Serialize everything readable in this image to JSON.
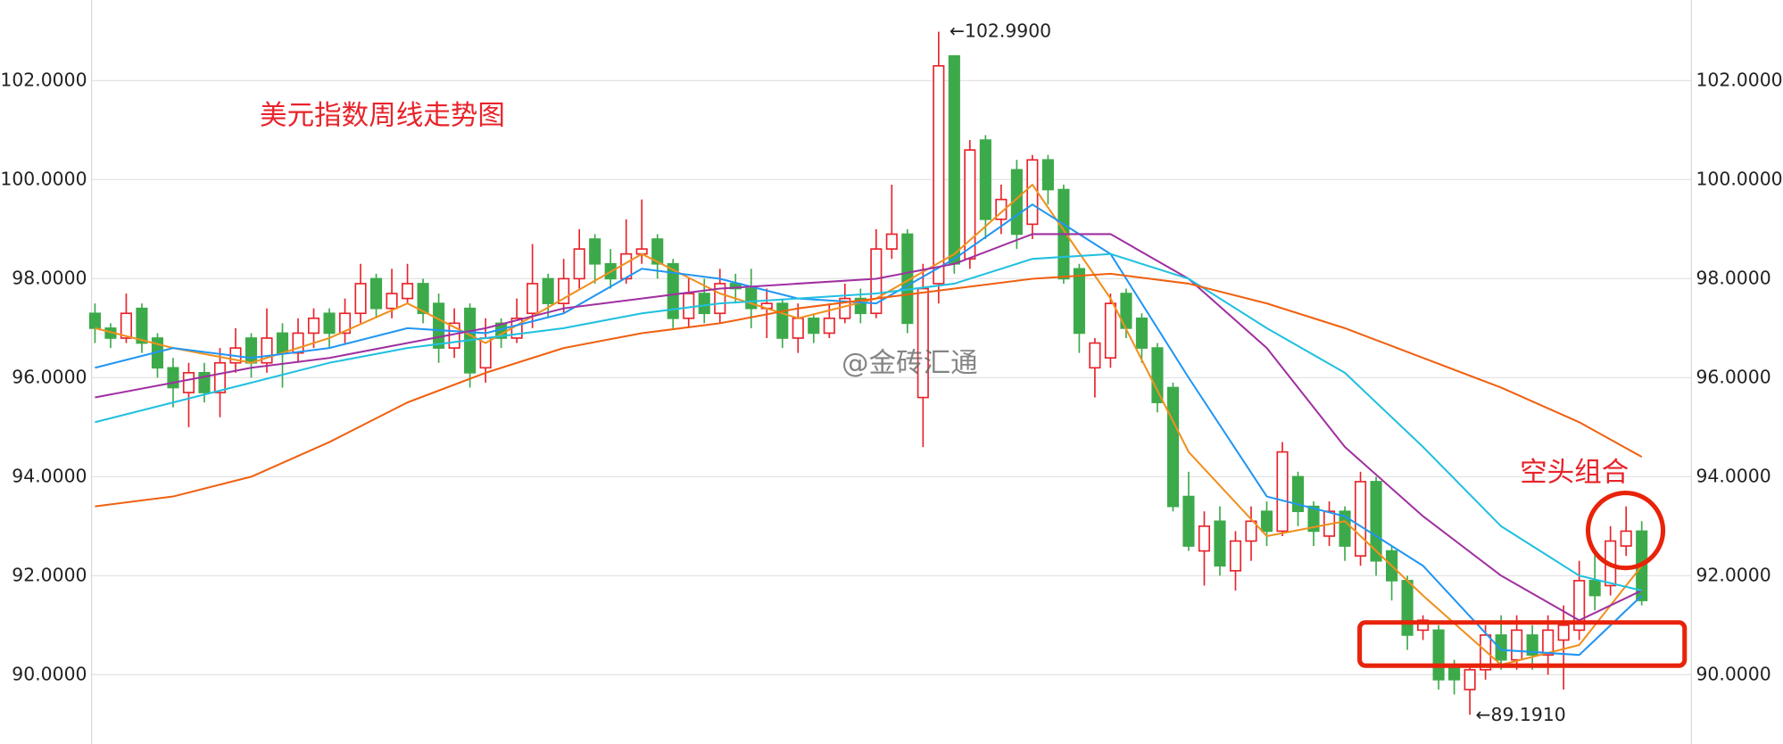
{
  "chart_data": {
    "type": "candlestick",
    "title": "美元指数周线走势图",
    "watermark": "@金砖汇通",
    "annotation": "空头组合",
    "high_label": "←102.9900",
    "low_label": "←89.1910",
    "ylim": [
      88.6,
      103.63
    ],
    "yticks": [
      {
        "value": 90,
        "label": "90.0000"
      },
      {
        "value": 92,
        "label": "92.0000"
      },
      {
        "value": 94,
        "label": "94.0000"
      },
      {
        "value": 96,
        "label": "96.0000"
      },
      {
        "value": 98,
        "label": "98.0000"
      },
      {
        "value": 100,
        "label": "100.0000"
      },
      {
        "value": 102,
        "label": "102.0000"
      }
    ],
    "grid": true,
    "up_color": "#e8232a",
    "down_color": "#3caa4a",
    "open": [
      97.3,
      97.0,
      96.8,
      97.4,
      96.8,
      96.2,
      95.7,
      96.1,
      95.7,
      96.3,
      96.8,
      96.3,
      96.9,
      96.5,
      96.9,
      97.3,
      96.9,
      97.3,
      98.0,
      97.4,
      97.6,
      97.9,
      97.5,
      96.6,
      97.4,
      96.2,
      97.1,
      96.8,
      97.3,
      98.0,
      97.5,
      98.0,
      98.8,
      98.3,
      98.0,
      98.5,
      98.8,
      98.3,
      97.2,
      97.7,
      97.3,
      97.9,
      97.8,
      97.4,
      97.5,
      96.8,
      97.2,
      96.9,
      97.2,
      97.6,
      97.3,
      98.6,
      98.9,
      95.6,
      97.9,
      102.5,
      98.4,
      100.8,
      99.2,
      100.2,
      99.1,
      100.4,
      99.8,
      98.2,
      96.2,
      96.4,
      97.7,
      97.2,
      96.6,
      95.8,
      93.6,
      92.5,
      93.1,
      92.1,
      92.7,
      93.3,
      92.9,
      94.0,
      93.4,
      92.8,
      93.3,
      92.4,
      93.9,
      92.5,
      91.9,
      90.9,
      90.9,
      90.2,
      89.7,
      90.1,
      90.8,
      90.3,
      90.8,
      90.4,
      90.7,
      90.9,
      91.9,
      91.8,
      92.6,
      92.9
    ],
    "high": [
      97.5,
      97.1,
      97.7,
      97.5,
      96.9,
      96.4,
      96.3,
      96.3,
      96.6,
      97.0,
      96.9,
      97.4,
      97.1,
      97.2,
      97.4,
      97.4,
      97.6,
      98.3,
      98.1,
      98.2,
      98.3,
      98.0,
      97.7,
      97.4,
      97.5,
      97.2,
      97.2,
      97.6,
      98.7,
      98.1,
      98.4,
      99.0,
      98.9,
      98.6,
      99.2,
      99.6,
      98.9,
      98.4,
      98.0,
      98.0,
      98.2,
      98.1,
      98.2,
      97.8,
      97.6,
      97.5,
      97.3,
      97.5,
      97.9,
      97.8,
      99.0,
      99.9,
      99.0,
      98.3,
      102.99,
      102.5,
      100.8,
      100.9,
      99.9,
      100.4,
      100.5,
      100.5,
      99.9,
      98.3,
      96.8,
      97.7,
      97.8,
      97.3,
      96.7,
      95.9,
      94.1,
      93.3,
      93.4,
      92.9,
      93.4,
      93.5,
      94.7,
      94.1,
      93.5,
      93.5,
      93.4,
      94.1,
      94.0,
      92.6,
      92.0,
      91.2,
      91.0,
      90.3,
      90.2,
      91.0,
      91.2,
      91.2,
      91.0,
      91.2,
      91.4,
      92.3,
      92.5,
      93.0,
      93.4,
      93.1
    ],
    "low": [
      96.7,
      96.6,
      96.7,
      96.5,
      96.0,
      95.4,
      95.0,
      95.5,
      95.2,
      96.1,
      96.0,
      96.1,
      95.8,
      96.3,
      96.6,
      96.6,
      96.7,
      97.1,
      97.2,
      97.2,
      97.5,
      97.1,
      96.3,
      96.4,
      95.8,
      95.9,
      96.6,
      96.7,
      97.0,
      97.2,
      97.3,
      97.8,
      97.9,
      97.8,
      97.9,
      98.3,
      98.0,
      97.0,
      97.0,
      97.1,
      97.1,
      97.5,
      97.0,
      96.8,
      96.6,
      96.5,
      96.7,
      96.8,
      97.1,
      97.1,
      97.2,
      98.4,
      96.9,
      94.6,
      97.5,
      98.1,
      98.2,
      98.8,
      98.9,
      98.6,
      98.8,
      99.5,
      97.9,
      96.5,
      95.6,
      96.2,
      96.8,
      96.3,
      95.3,
      93.3,
      92.5,
      91.8,
      92.0,
      91.7,
      92.3,
      92.6,
      92.8,
      93.0,
      92.6,
      92.6,
      92.3,
      92.2,
      92.0,
      91.5,
      90.5,
      90.7,
      89.7,
      89.6,
      89.191,
      89.9,
      90.1,
      90.1,
      90.1,
      90.0,
      89.7,
      90.7,
      91.3,
      91.6,
      92.4,
      91.4
    ],
    "close": [
      97.0,
      96.8,
      97.3,
      96.7,
      96.2,
      95.8,
      96.1,
      95.7,
      96.3,
      96.6,
      96.3,
      96.8,
      96.5,
      96.9,
      97.2,
      96.9,
      97.3,
      97.9,
      97.4,
      97.7,
      97.9,
      97.3,
      96.6,
      97.1,
      96.1,
      96.8,
      96.8,
      97.2,
      97.9,
      97.5,
      98.0,
      98.6,
      98.3,
      98.0,
      98.5,
      98.6,
      98.3,
      97.2,
      97.7,
      97.3,
      97.9,
      97.8,
      97.4,
      97.5,
      96.8,
      97.2,
      96.9,
      97.2,
      97.6,
      97.3,
      98.6,
      98.9,
      97.1,
      97.8,
      102.3,
      98.3,
      100.6,
      99.2,
      99.6,
      98.9,
      100.4,
      99.8,
      98.0,
      96.9,
      96.7,
      97.5,
      97.0,
      96.6,
      95.5,
      93.4,
      92.6,
      93.0,
      92.2,
      92.7,
      93.1,
      92.9,
      94.5,
      93.3,
      92.9,
      93.3,
      92.6,
      93.9,
      92.3,
      91.9,
      90.8,
      91.1,
      89.9,
      89.9,
      90.1,
      90.8,
      90.3,
      90.9,
      90.4,
      90.9,
      91.0,
      91.9,
      91.6,
      92.7,
      92.9,
      91.5
    ],
    "series": [
      {
        "color": "#f0901e",
        "x": [
          0,
          5,
          10,
          15,
          20,
          25,
          30,
          35,
          40,
          45,
          50,
          55,
          60,
          65,
          70,
          75,
          80,
          85,
          90,
          95,
          99
        ],
        "values": [
          97.0,
          96.6,
          96.3,
          96.8,
          97.5,
          96.7,
          97.6,
          98.5,
          97.7,
          97.2,
          97.6,
          98.5,
          99.9,
          97.6,
          94.5,
          92.8,
          93.1,
          91.6,
          90.2,
          90.6,
          92.2
        ]
      },
      {
        "color": "#2196f3",
        "x": [
          0,
          5,
          10,
          15,
          20,
          25,
          30,
          35,
          40,
          45,
          50,
          55,
          60,
          65,
          70,
          75,
          80,
          85,
          90,
          95,
          99
        ],
        "values": [
          96.2,
          96.6,
          96.4,
          96.6,
          97.0,
          96.9,
          97.3,
          98.2,
          98.0,
          97.6,
          97.5,
          98.4,
          99.5,
          98.5,
          96.0,
          93.6,
          93.2,
          92.2,
          90.5,
          90.4,
          91.6
        ]
      },
      {
        "color": "#a030a0",
        "x": [
          0,
          5,
          10,
          15,
          20,
          25,
          30,
          35,
          40,
          45,
          50,
          55,
          60,
          65,
          70,
          75,
          80,
          85,
          90,
          95,
          99
        ],
        "values": [
          95.6,
          95.9,
          96.2,
          96.4,
          96.7,
          97.0,
          97.4,
          97.6,
          97.8,
          97.9,
          98.0,
          98.3,
          98.9,
          98.9,
          98.0,
          96.6,
          94.6,
          93.2,
          92.0,
          91.1,
          91.7
        ]
      },
      {
        "color": "#20c0e0",
        "x": [
          0,
          5,
          10,
          15,
          20,
          25,
          30,
          35,
          40,
          45,
          50,
          55,
          60,
          65,
          70,
          75,
          80,
          85,
          90,
          95,
          99
        ],
        "values": [
          95.1,
          95.5,
          95.9,
          96.3,
          96.6,
          96.8,
          97.0,
          97.3,
          97.5,
          97.6,
          97.7,
          97.9,
          98.4,
          98.5,
          98.0,
          97.0,
          96.1,
          94.6,
          93.0,
          92.0,
          91.7
        ]
      },
      {
        "color": "#f06010",
        "x": [
          0,
          5,
          10,
          15,
          20,
          25,
          30,
          35,
          40,
          45,
          50,
          55,
          60,
          65,
          70,
          75,
          80,
          85,
          90,
          95,
          99
        ],
        "values": [
          93.4,
          93.6,
          94.0,
          94.7,
          95.5,
          96.1,
          96.6,
          96.9,
          97.1,
          97.4,
          97.6,
          97.8,
          98.0,
          98.1,
          97.9,
          97.5,
          97.0,
          96.4,
          95.8,
          95.1,
          94.4
        ]
      }
    ]
  }
}
